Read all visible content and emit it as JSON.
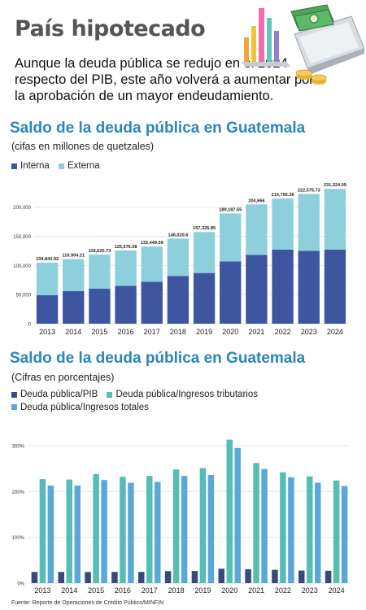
{
  "header": {
    "title": "País hipotecado",
    "subtitle": "Aunque la deuda pública se redujo en el 2024 respecto del PIB, este año volverá a aumentar por la aprobación de un mayor endeudamiento."
  },
  "source": "Fuente: Reporte de Operaciones de Crédito Público/MINFIN",
  "chart_data": [
    {
      "type": "bar",
      "stacked": true,
      "title": "Saldo de la deuda pública en Guatemala",
      "subtitle": "(cifas en millones de quetzales)",
      "categories": [
        "2013",
        "2014",
        "2015",
        "2016",
        "2017",
        "2018",
        "2019",
        "2020",
        "2021",
        "2022",
        "2023",
        "2024"
      ],
      "series": [
        {
          "name": "Interna",
          "color": "#3e56a0",
          "values": [
            49000,
            56000,
            60000,
            65000,
            72000,
            82000,
            87000,
            107000,
            118000,
            127000,
            125000,
            127000
          ]
        },
        {
          "name": "Externa",
          "color": "#8dd0dc",
          "values": [
            55843.92,
            54904.21,
            58625.73,
            60676.08,
            60449.59,
            64020.6,
            70325.85,
            82187.55,
            86666,
            87755.36,
            97575.73,
            104324.09
          ]
        }
      ],
      "total_labels": [
        "104,843.92",
        "110,904.21",
        "118,625.73",
        "125,676.08",
        "132,449.59",
        "146,020.6",
        "157,325.85",
        "189,187.55",
        "204,666",
        "214,755.36",
        "222,575.73",
        "231,324.09"
      ],
      "y_ticks": [
        "0",
        "50,000",
        "100,000",
        "150,000",
        "200,000"
      ],
      "ylim": [
        0,
        240000
      ],
      "grid": true,
      "legend_position": "top-left"
    },
    {
      "type": "bar",
      "title": "Saldo de la deuda pública en Guatemala",
      "subtitle": "(Cifras en porcentajes)",
      "categories": [
        "2013",
        "2014",
        "2015",
        "2016",
        "2017",
        "2018",
        "2019",
        "2020",
        "2021",
        "2022",
        "2023",
        "2024"
      ],
      "series": [
        {
          "name": "Deuda pública/PIB",
          "color": "#364a7e",
          "values": [
            24.5,
            24.5,
            24.3,
            24.5,
            24.5,
            26.2,
            26.4,
            31.6,
            30.4,
            29.0,
            27.5,
            27.0
          ]
        },
        {
          "name": "Deuda pública/Ingresos tributarios",
          "color": "#55bdb5",
          "values": [
            227,
            226,
            238,
            232,
            234,
            248,
            251,
            313,
            262,
            242,
            233,
            224
          ]
        },
        {
          "name": "Deuda pública/Ingresos totales",
          "color": "#5aa8d8",
          "values": [
            213,
            213,
            225,
            219,
            221,
            234,
            236,
            295,
            249,
            231,
            219,
            212
          ]
        }
      ],
      "y_ticks": [
        "0%",
        "100%",
        "200%",
        "300%"
      ],
      "ylim": [
        0,
        330
      ],
      "grid": true,
      "legend_position": "top-left"
    }
  ]
}
